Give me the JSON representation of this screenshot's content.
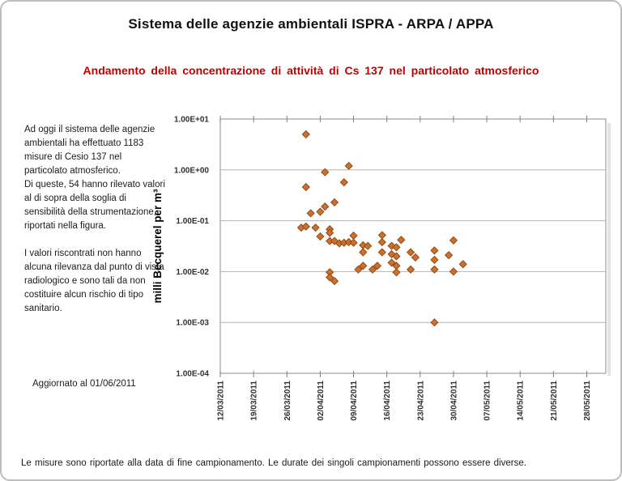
{
  "page": {
    "title": "Sistema delle agenzie ambientali ISPRA - ARPA / APPA",
    "subtitle": "Andamento della concentrazione di attività di Cs 137 nel particolato atmosferico",
    "side_note_p1": "Ad oggi il sistema delle agenzie ambientali  ha effettuato 1183 misure di Cesio 137 nel particolato atmosferico.",
    "side_note_p2": "Di queste, 54 hanno rilevato valori al di sopra della soglia di sensibilità della strumentazione, riportati nella figura.",
    "side_note_p3": "I valori riscontrati non hanno alcuna rilevanza dal punto di vista radiologico e sono tali da non costituire alcun rischio di tipo sanitario.",
    "updated_label": "Aggiornato al 01/06/2011",
    "footer_note": "Le misure sono riportate alla data di fine campionamento. Le durate dei singoli campionamenti possono essere diverse."
  },
  "colors": {
    "subtitle_red": "#C00000",
    "marker_fill": "#CF6F2D",
    "marker_stroke": "#8F4A14",
    "gridline": "#B3B3B3",
    "plot_border": "#9E9E9E",
    "tick_mark": "#7F7F7F",
    "axis_text": "#303030",
    "shadow": "#DADADA"
  },
  "chart_data": {
    "type": "scatter",
    "series_name": "Cs 137",
    "ylabel": "milli Becquerel per m³",
    "y_scale": "log",
    "ylim": [
      0.0001,
      10
    ],
    "y_tick_labels": [
      "1.00E+01",
      "1.00E+00",
      "1.00E-01",
      "1.00E-02",
      "1.00E-03",
      "1.00E-04"
    ],
    "x_start": "12/03/2011",
    "x_end": "01/06/2011",
    "x_tick_interval_days": 7,
    "x_tick_labels": [
      "12/03/2011",
      "19/03/2011",
      "26/03/2011",
      "02/04/2011",
      "09/04/2011",
      "16/04/2011",
      "23/04/2011",
      "30/04/2011",
      "07/05/2011",
      "14/05/2011",
      "21/05/2011",
      "28/05/2011"
    ],
    "grid": "horizontal-only",
    "legend": "none",
    "points": [
      {
        "date": "30/03/2011",
        "value": 5.0
      },
      {
        "date": "08/04/2011",
        "value": 1.2
      },
      {
        "date": "03/04/2011",
        "value": 0.9
      },
      {
        "date": "07/04/2011",
        "value": 0.57
      },
      {
        "date": "30/03/2011",
        "value": 0.46
      },
      {
        "date": "05/04/2011",
        "value": 0.23
      },
      {
        "date": "03/04/2011",
        "value": 0.19
      },
      {
        "date": "31/03/2011",
        "value": 0.14
      },
      {
        "date": "02/04/2011",
        "value": 0.15
      },
      {
        "date": "29/03/2011",
        "value": 0.073
      },
      {
        "date": "30/03/2011",
        "value": 0.077
      },
      {
        "date": "01/04/2011",
        "value": 0.073
      },
      {
        "date": "02/04/2011",
        "value": 0.049
      },
      {
        "date": "04/04/2011",
        "value": 0.068
      },
      {
        "date": "04/04/2011",
        "value": 0.058
      },
      {
        "date": "04/04/2011",
        "value": 0.04
      },
      {
        "date": "05/04/2011",
        "value": 0.04
      },
      {
        "date": "06/04/2011",
        "value": 0.036
      },
      {
        "date": "07/04/2011",
        "value": 0.037
      },
      {
        "date": "08/04/2011",
        "value": 0.038
      },
      {
        "date": "09/04/2011",
        "value": 0.051
      },
      {
        "date": "09/04/2011",
        "value": 0.037
      },
      {
        "date": "11/04/2011",
        "value": 0.033
      },
      {
        "date": "12/04/2011",
        "value": 0.032
      },
      {
        "date": "15/04/2011",
        "value": 0.052
      },
      {
        "date": "15/04/2011",
        "value": 0.038
      },
      {
        "date": "11/04/2011",
        "value": 0.024
      },
      {
        "date": "15/04/2011",
        "value": 0.024
      },
      {
        "date": "17/04/2011",
        "value": 0.032
      },
      {
        "date": "17/04/2011",
        "value": 0.022
      },
      {
        "date": "19/04/2011",
        "value": 0.042
      },
      {
        "date": "18/04/2011",
        "value": 0.03
      },
      {
        "date": "18/04/2011",
        "value": 0.02
      },
      {
        "date": "18/04/2011",
        "value": 0.013
      },
      {
        "date": "11/04/2011",
        "value": 0.013
      },
      {
        "date": "14/04/2011",
        "value": 0.013
      },
      {
        "date": "17/04/2011",
        "value": 0.015
      },
      {
        "date": "21/04/2011",
        "value": 0.024
      },
      {
        "date": "22/04/2011",
        "value": 0.019
      },
      {
        "date": "21/04/2011",
        "value": 0.011
      },
      {
        "date": "26/04/2011",
        "value": 0.026
      },
      {
        "date": "26/04/2011",
        "value": 0.017
      },
      {
        "date": "26/04/2011",
        "value": 0.011
      },
      {
        "date": "30/04/2011",
        "value": 0.041
      },
      {
        "date": "29/04/2011",
        "value": 0.021
      },
      {
        "date": "30/04/2011",
        "value": 0.01
      },
      {
        "date": "02/05/2011",
        "value": 0.014
      },
      {
        "date": "10/04/2011",
        "value": 0.011
      },
      {
        "date": "13/04/2011",
        "value": 0.011
      },
      {
        "date": "18/04/2011",
        "value": 0.0097
      },
      {
        "date": "04/04/2011",
        "value": 0.0097
      },
      {
        "date": "04/04/2011",
        "value": 0.0077
      },
      {
        "date": "05/04/2011",
        "value": 0.0065
      },
      {
        "date": "26/04/2011",
        "value": 0.001
      }
    ]
  }
}
